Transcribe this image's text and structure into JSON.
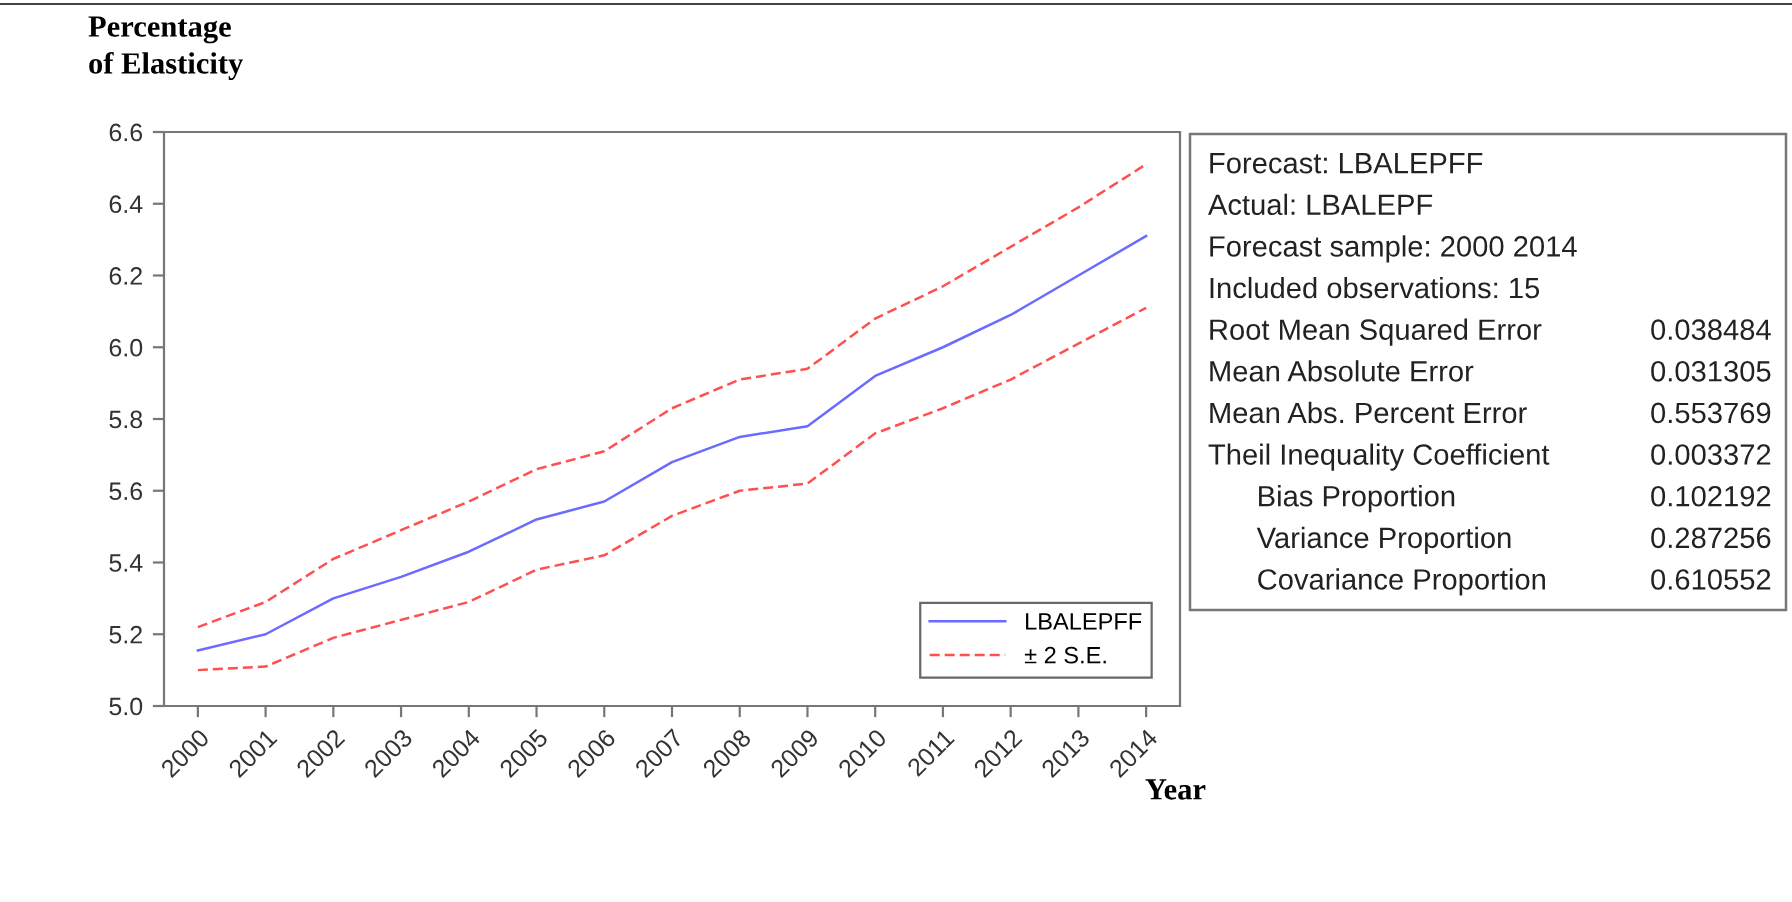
{
  "chart_data": {
    "type": "line",
    "ylabel": "Percentage\nof Elasticity",
    "xlabel": "Year",
    "categories": [
      "2000",
      "2001",
      "2002",
      "2003",
      "2004",
      "2005",
      "2006",
      "2007",
      "2008",
      "2009",
      "2010",
      "2011",
      "2012",
      "2013",
      "2014"
    ],
    "series": [
      {
        "name": "LBALEPFF",
        "color": "#6b6bff",
        "line_style": "solid",
        "values": [
          5.155,
          5.2,
          5.3,
          5.36,
          5.43,
          5.52,
          5.57,
          5.68,
          5.75,
          5.78,
          5.92,
          6.0,
          6.09,
          6.2,
          6.31
        ]
      },
      {
        "name": "± 2 S.E.",
        "color": "#ff5050",
        "line_style": "dashed",
        "values": [
          5.22,
          5.29,
          5.41,
          5.49,
          5.57,
          5.66,
          5.71,
          5.83,
          5.91,
          5.94,
          6.08,
          6.17,
          6.28,
          6.39,
          6.51
        ]
      },
      {
        "color": "#ff5050",
        "line_style": "dashed",
        "values": [
          5.1,
          5.11,
          5.19,
          5.24,
          5.29,
          5.38,
          5.42,
          5.53,
          5.6,
          5.62,
          5.76,
          5.83,
          5.91,
          6.01,
          6.11
        ]
      }
    ],
    "ylim": [
      5.0,
      6.6
    ],
    "yticks": [
      {
        "value": 5.0,
        "label": "5.0"
      },
      {
        "value": 5.2,
        "label": "5.2"
      },
      {
        "value": 5.4,
        "label": "5.4"
      },
      {
        "value": 5.6,
        "label": "5.6"
      },
      {
        "value": 5.8,
        "label": "5.8"
      },
      {
        "value": 6.0,
        "label": "6.0"
      },
      {
        "value": 6.2,
        "label": "6.2"
      },
      {
        "value": 6.4,
        "label": "6.4"
      },
      {
        "value": 6.6,
        "label": "6.6"
      }
    ],
    "legend": "bottom right",
    "grid": false,
    "marker": "none",
    "annotations": [
      "Forecast: LBALEPFF",
      "Actual: LBALEPF",
      "Forecast sample: 2000 2014",
      "Included observations: 15",
      "Root Mean Squared Error\t0.038484",
      "Mean Absolute Error\t0.031305",
      "Mean Abs. Percent Error\t0.553769",
      "Theil Inequality Coefficient\t0.003372",
      "    Bias Proportion\t0.102192",
      "    Variance Proportion\t0.287256",
      "    Covariance Proportion\t0.610552"
    ]
  }
}
